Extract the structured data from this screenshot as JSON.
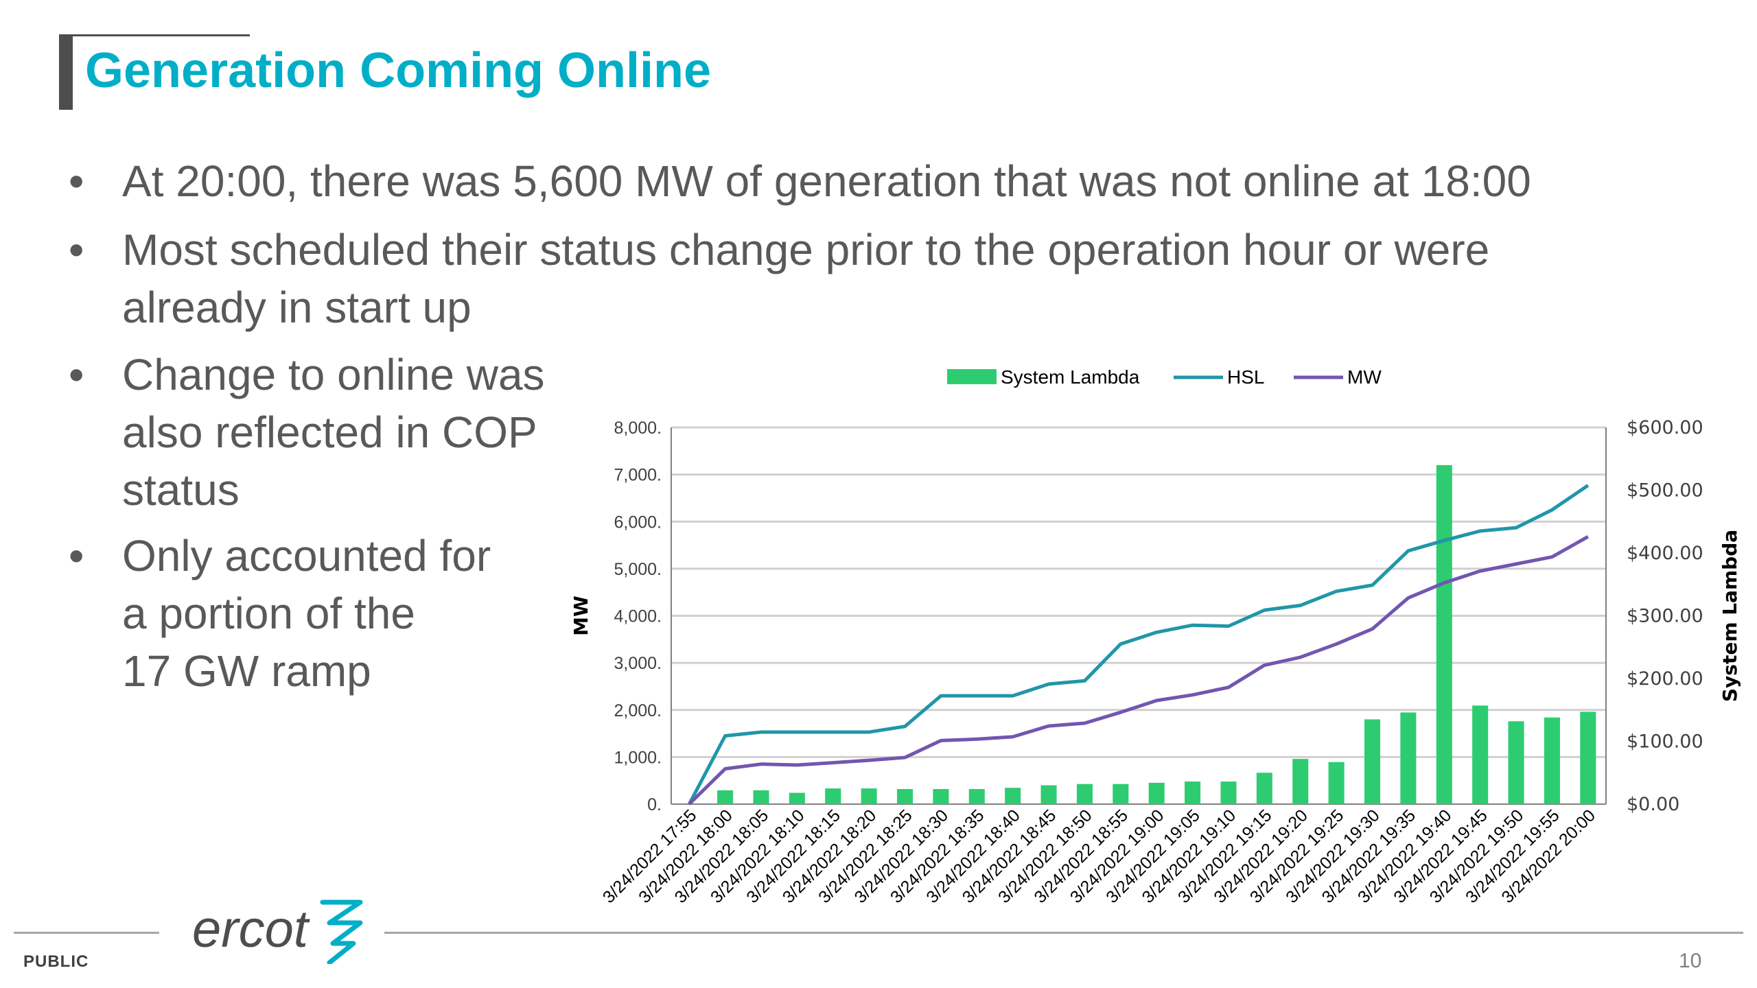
{
  "slide": {
    "title": "Generation Coming Online",
    "bullets": [
      {
        "lines": [
          "At 20:00, there was 5,600 MW of generation that was not online at 18:00"
        ]
      },
      {
        "lines": [
          "Most scheduled their status change prior to the operation hour or were",
          "already in start up"
        ]
      },
      {
        "lines": [
          "Change to online was",
          "also reflected in COP",
          "status"
        ]
      },
      {
        "lines": [
          "Only accounted for",
          "a portion of the",
          "17 GW ramp"
        ]
      }
    ],
    "bullet_glyph": "•",
    "footer": {
      "classification": "PUBLIC",
      "page_number": "10",
      "logo_text": "ercot"
    }
  },
  "chart_data": {
    "type": "bar",
    "categories": [
      "3/24/2022 17:55",
      "3/24/2022 18:00",
      "3/24/2022 18:05",
      "3/24/2022 18:10",
      "3/24/2022 18:15",
      "3/24/2022 18:20",
      "3/24/2022 18:25",
      "3/24/2022 18:30",
      "3/24/2022 18:35",
      "3/24/2022 18:40",
      "3/24/2022 18:45",
      "3/24/2022 18:50",
      "3/24/2022 18:55",
      "3/24/2022 19:00",
      "3/24/2022 19:05",
      "3/24/2022 19:10",
      "3/24/2022 19:15",
      "3/24/2022 19:20",
      "3/24/2022 19:25",
      "3/24/2022 19:30",
      "3/24/2022 19:35",
      "3/24/2022 19:40",
      "3/24/2022 19:45",
      "3/24/2022 19:50",
      "3/24/2022 19:55",
      "3/24/2022 20:00"
    ],
    "series": [
      {
        "name": "System Lambda",
        "type": "bar",
        "axis": "right",
        "color": "#2ecc71",
        "values": [
          null,
          22,
          22,
          18,
          25,
          25,
          24,
          24,
          24,
          26,
          30,
          32,
          32,
          34,
          36,
          36,
          50,
          72,
          67,
          135,
          146,
          540,
          157,
          132,
          138,
          147
        ]
      },
      {
        "name": "HSL",
        "type": "line",
        "axis": "left",
        "color": "#2196a8",
        "values": [
          0,
          1450,
          1530,
          1530,
          1530,
          1530,
          1650,
          2300,
          2300,
          2300,
          2550,
          2620,
          3400,
          3650,
          3800,
          3780,
          4120,
          4220,
          4520,
          4650,
          5380,
          5600,
          5800,
          5870,
          6250,
          6770
        ]
      },
      {
        "name": "MW",
        "type": "line",
        "axis": "left",
        "color": "#7256b0",
        "values": [
          0,
          750,
          850,
          830,
          880,
          930,
          990,
          1350,
          1380,
          1430,
          1660,
          1720,
          1950,
          2200,
          2320,
          2480,
          2950,
          3120,
          3400,
          3720,
          4380,
          4700,
          4950,
          5100,
          5250,
          5680
        ]
      }
    ],
    "left_axis": {
      "label": "MW",
      "min": 0,
      "max": 8000,
      "ticks": [
        "0.",
        "1,000.",
        "2,000.",
        "3,000.",
        "4,000.",
        "5,000.",
        "6,000.",
        "7,000.",
        "8,000."
      ]
    },
    "right_axis": {
      "label": "System Lambda",
      "min": 0,
      "max": 600,
      "ticks": [
        "$0.00",
        "$100.00",
        "$200.00",
        "$300.00",
        "$400.00",
        "$500.00",
        "$600.00"
      ]
    },
    "legend": {
      "placement": "top"
    },
    "grid": true
  }
}
